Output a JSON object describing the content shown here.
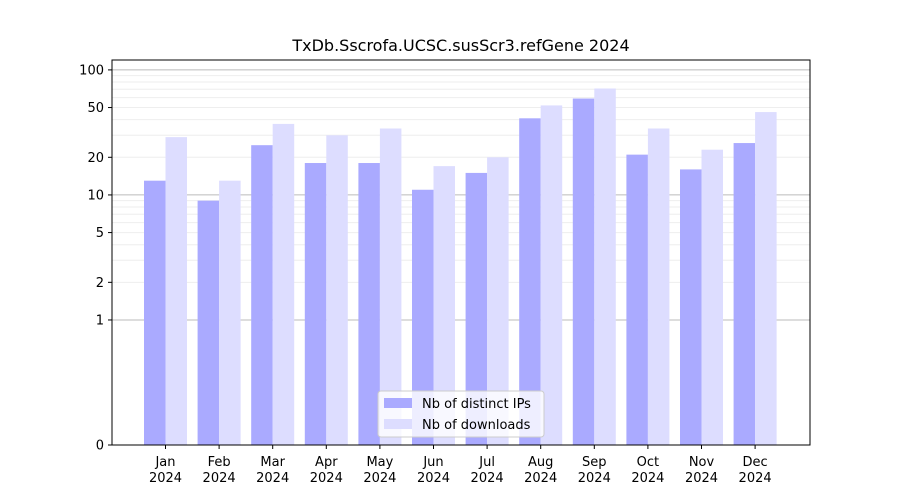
{
  "chart_data": {
    "type": "bar",
    "title": "TxDb.Sscrofa.UCSC.susScr3.refGene 2024",
    "xlabel": "",
    "ylabel": "",
    "yscale": "symlog",
    "ylim": [
      0,
      120
    ],
    "yticks": [
      0,
      1,
      2,
      5,
      10,
      20,
      50,
      100
    ],
    "ytick_labels": [
      "0",
      "1",
      "2",
      "5",
      "10",
      "20",
      "50",
      "100"
    ],
    "categories": [
      "Jan\n2024",
      "Feb\n2024",
      "Mar\n2024",
      "Apr\n2024",
      "May\n2024",
      "Jun\n2024",
      "Jul\n2024",
      "Aug\n2024",
      "Sep\n2024",
      "Oct\n2024",
      "Nov\n2024",
      "Dec\n2024"
    ],
    "series": [
      {
        "name": "Nb of distinct IPs",
        "color": "#aaaaff",
        "values": [
          13,
          9,
          25,
          18,
          18,
          11,
          15,
          41,
          59,
          21,
          16,
          26
        ]
      },
      {
        "name": "Nb of downloads",
        "color": "#ddddff",
        "values": [
          29,
          13,
          37,
          30,
          34,
          17,
          20,
          52,
          71,
          34,
          23,
          46
        ]
      }
    ],
    "grid": true,
    "legend_position": "bottom-center"
  }
}
